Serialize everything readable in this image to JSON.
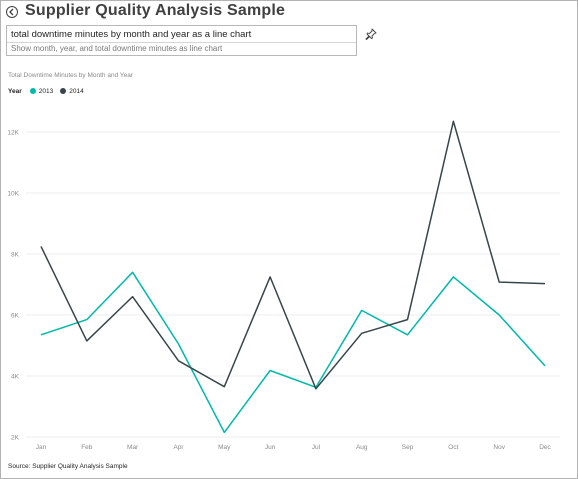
{
  "header": {
    "title": "Supplier Quality Analysis Sample"
  },
  "qa": {
    "query": "total downtime minutes by month and year as a line chart",
    "suggestion": "Show month, year, and total downtime minutes as line chart"
  },
  "icons": {
    "back": "back-arrow-icon",
    "pin": "pin-icon"
  },
  "footer": {
    "source": "Source: Supplier Quality Analysis Sample"
  },
  "chart_data": {
    "type": "line",
    "title": "Total Downtime Minutes by Month and Year",
    "legend_title": "Year",
    "legend_position": "top-left",
    "xlabel": "",
    "ylabel": "",
    "categories": [
      "Jan",
      "Feb",
      "Mar",
      "Apr",
      "May",
      "Jun",
      "Jul",
      "Aug",
      "Sep",
      "Oct",
      "Nov",
      "Dec"
    ],
    "ylim": [
      2000,
      13000
    ],
    "yticks": [
      2000,
      4000,
      6000,
      8000,
      10000,
      12000
    ],
    "ytick_labels": [
      "2K",
      "4K",
      "6K",
      "8K",
      "10K",
      "12K"
    ],
    "grid": true,
    "series": [
      {
        "name": "2013",
        "color": "#01b8aa",
        "values": [
          5350,
          5850,
          7400,
          5050,
          2150,
          4180,
          3630,
          6150,
          5350,
          7250,
          6000,
          4330
        ]
      },
      {
        "name": "2014",
        "color": "#374649",
        "values": [
          8250,
          5150,
          6600,
          4500,
          3650,
          7250,
          3580,
          5400,
          5850,
          12350,
          7080,
          7030
        ]
      }
    ]
  }
}
